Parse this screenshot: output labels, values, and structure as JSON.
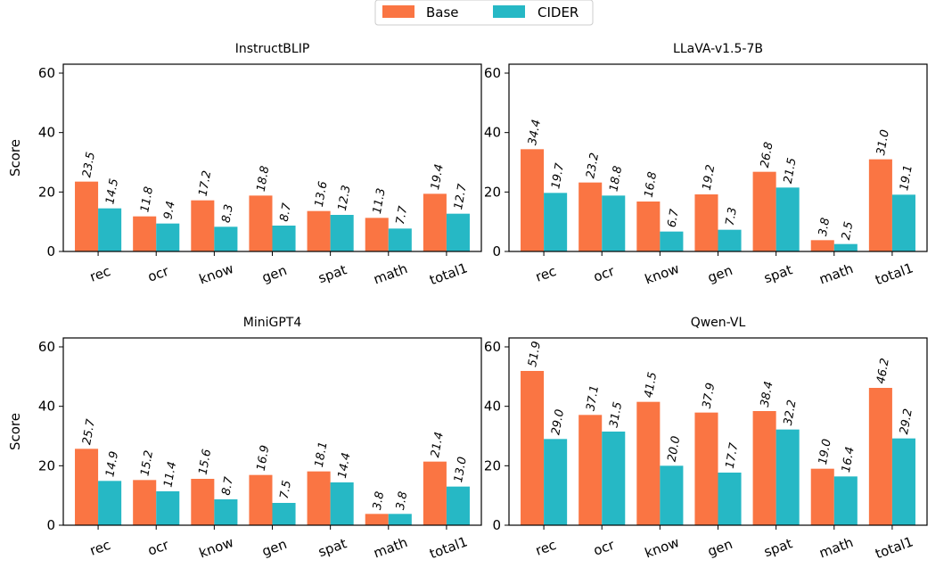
{
  "legend": {
    "items": [
      {
        "label": "Base",
        "color": "#fa7543"
      },
      {
        "label": "CIDER",
        "color": "#26b8c5"
      }
    ],
    "placement": "top-center"
  },
  "chart_data": [
    {
      "type": "bar",
      "title": "InstructBLIP",
      "ylabel": "Score",
      "ylim": [
        0,
        63
      ],
      "yticks": [
        0,
        20,
        40,
        60
      ],
      "categories": [
        "rec",
        "ocr",
        "know",
        "gen",
        "spat",
        "math",
        "total1"
      ],
      "series": [
        {
          "name": "Base",
          "color": "#fa7543",
          "values": [
            23.5,
            11.8,
            17.2,
            18.8,
            13.6,
            11.3,
            19.4
          ]
        },
        {
          "name": "CIDER",
          "color": "#26b8c5",
          "values": [
            14.5,
            9.4,
            8.3,
            8.7,
            12.3,
            7.7,
            12.7
          ]
        }
      ]
    },
    {
      "type": "bar",
      "title": "LLaVA-v1.5-7B",
      "ylabel": "",
      "ylim": [
        0,
        63
      ],
      "yticks": [
        0,
        20,
        40,
        60
      ],
      "categories": [
        "rec",
        "ocr",
        "know",
        "gen",
        "spat",
        "math",
        "total1"
      ],
      "series": [
        {
          "name": "Base",
          "color": "#fa7543",
          "values": [
            34.4,
            23.2,
            16.8,
            19.2,
            26.8,
            3.8,
            31.0
          ]
        },
        {
          "name": "CIDER",
          "color": "#26b8c5",
          "values": [
            19.7,
            18.8,
            6.7,
            7.3,
            21.5,
            2.5,
            19.1
          ]
        }
      ]
    },
    {
      "type": "bar",
      "title": "MiniGPT4",
      "ylabel": "Score",
      "ylim": [
        0,
        63
      ],
      "yticks": [
        0,
        20,
        40,
        60
      ],
      "categories": [
        "rec",
        "ocr",
        "know",
        "gen",
        "spat",
        "math",
        "total1"
      ],
      "series": [
        {
          "name": "Base",
          "color": "#fa7543",
          "values": [
            25.7,
            15.2,
            15.6,
            16.9,
            18.1,
            3.8,
            21.4
          ]
        },
        {
          "name": "CIDER",
          "color": "#26b8c5",
          "values": [
            14.9,
            11.4,
            8.7,
            7.5,
            14.4,
            3.8,
            13.0
          ]
        }
      ]
    },
    {
      "type": "bar",
      "title": "Qwen-VL",
      "ylabel": "",
      "ylim": [
        0,
        63
      ],
      "yticks": [
        0,
        20,
        40,
        60
      ],
      "categories": [
        "rec",
        "ocr",
        "know",
        "gen",
        "spat",
        "math",
        "total1"
      ],
      "series": [
        {
          "name": "Base",
          "color": "#fa7543",
          "values": [
            51.9,
            37.1,
            41.5,
            37.9,
            38.4,
            19.0,
            46.2
          ]
        },
        {
          "name": "CIDER",
          "color": "#26b8c5",
          "values": [
            29.0,
            31.5,
            20.0,
            17.7,
            32.2,
            16.4,
            29.2
          ]
        }
      ]
    }
  ]
}
